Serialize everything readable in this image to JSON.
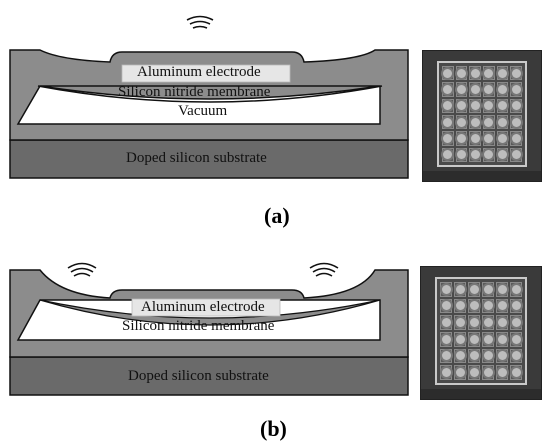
{
  "panel_a": {
    "caption": "(a)",
    "labels": {
      "electrode": "Aluminum electrode",
      "membrane": "Silicon nitride membrane",
      "cavity": "Vacuum",
      "substrate": "Doped silicon substrate"
    }
  },
  "panel_b": {
    "caption": "(b)",
    "labels": {
      "electrode": "Aluminum electrode",
      "membrane": "Silicon nitride membrane",
      "substrate": "Doped silicon substrate"
    }
  },
  "colors": {
    "membrane": "#8c8c8c",
    "substrate": "#6a6a6a",
    "cavity": "#ffffff",
    "electrode": "#e6e6e6",
    "outline": "#111111"
  },
  "icons": [
    "acoustic-wave-icon"
  ]
}
